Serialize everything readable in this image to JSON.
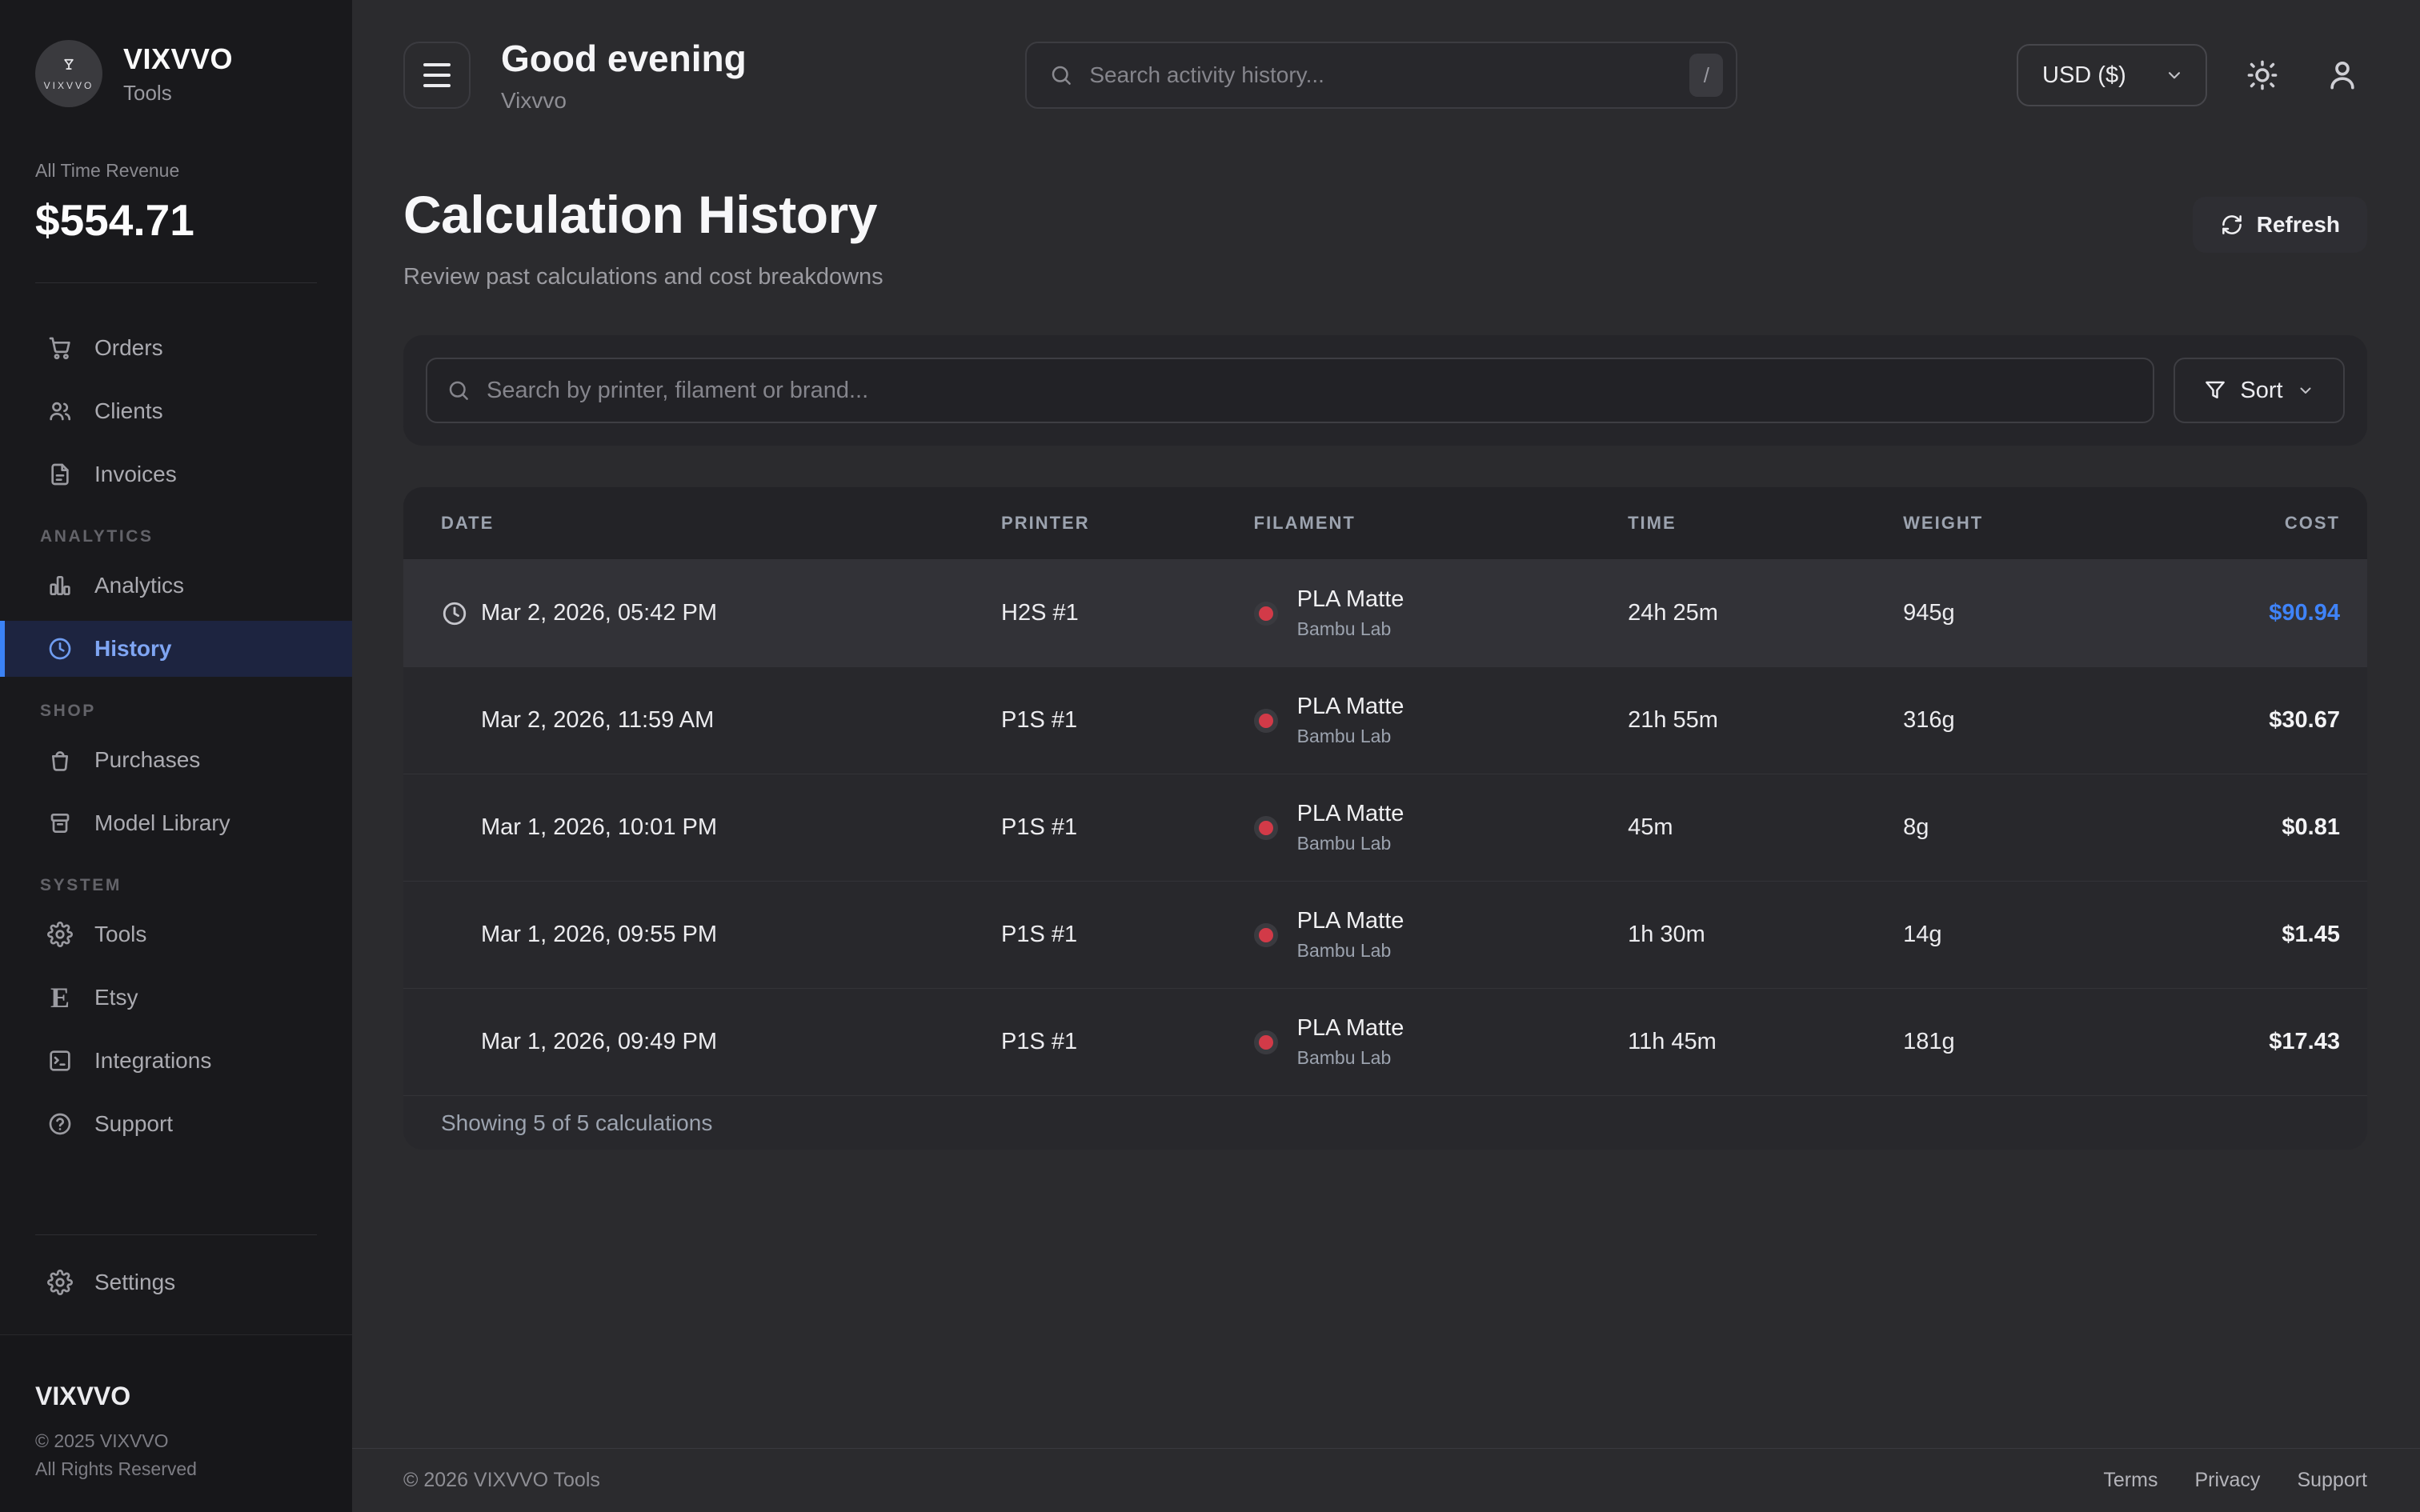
{
  "brand": {
    "name": "VIXVVO",
    "subtitle": "Tools",
    "logo_word": "VIXVVO"
  },
  "sidebar": {
    "revenue_label": "All Time Revenue",
    "revenue_value": "$554.71",
    "nav": [
      {
        "section": null,
        "items": [
          {
            "label": "Orders",
            "icon": "cart",
            "active": false
          },
          {
            "label": "Clients",
            "icon": "users",
            "active": false
          },
          {
            "label": "Invoices",
            "icon": "invoice",
            "active": false
          }
        ]
      },
      {
        "section": "ANALYTICS",
        "items": [
          {
            "label": "Analytics",
            "icon": "analytics",
            "active": false
          },
          {
            "label": "History",
            "icon": "history",
            "active": true
          }
        ]
      },
      {
        "section": "SHOP",
        "items": [
          {
            "label": "Purchases",
            "icon": "bag",
            "active": false
          },
          {
            "label": "Model Library",
            "icon": "library",
            "active": false
          }
        ]
      },
      {
        "section": "SYSTEM",
        "items": [
          {
            "label": "Tools",
            "icon": "gear",
            "active": false
          },
          {
            "label": "Etsy",
            "icon": "etsy",
            "active": false
          },
          {
            "label": "Integrations",
            "icon": "integrations",
            "active": false
          },
          {
            "label": "Support",
            "icon": "support",
            "active": false
          }
        ]
      }
    ],
    "settings_label": "Settings",
    "footer_brand": "VIXVVO",
    "footer_copyright": "© 2025 VIXVVO",
    "footer_rights": "All Rights Reserved"
  },
  "header": {
    "greeting": "Good evening",
    "greeting_sub": "Vixvvo",
    "search_placeholder": "Search activity history...",
    "search_shortcut": "/",
    "currency": "USD ($)"
  },
  "page": {
    "title": "Calculation History",
    "subtitle": "Review past calculations and cost breakdowns",
    "refresh_label": "Refresh",
    "search_placeholder": "Search by printer, filament or brand...",
    "sort_label": "Sort",
    "showing_text": "Showing 5 of 5 calculations"
  },
  "table": {
    "columns": [
      "DATE",
      "PRINTER",
      "FILAMENT",
      "TIME",
      "WEIGHT",
      "COST"
    ],
    "filament_dot_color": "#d23a48",
    "rows": [
      {
        "date": "Mar 2, 2026, 05:42 PM",
        "printer": "H2S #1",
        "filament": "PLA Matte",
        "brand": "Bambu Lab",
        "time": "24h 25m",
        "weight": "945g",
        "cost": "$90.94",
        "highlight": true,
        "clock_icon": true
      },
      {
        "date": "Mar 2, 2026, 11:59 AM",
        "printer": "P1S #1",
        "filament": "PLA Matte",
        "brand": "Bambu Lab",
        "time": "21h 55m",
        "weight": "316g",
        "cost": "$30.67",
        "highlight": false,
        "clock_icon": false
      },
      {
        "date": "Mar 1, 2026, 10:01 PM",
        "printer": "P1S #1",
        "filament": "PLA Matte",
        "brand": "Bambu Lab",
        "time": "45m",
        "weight": "8g",
        "cost": "$0.81",
        "highlight": false,
        "clock_icon": false
      },
      {
        "date": "Mar 1, 2026, 09:55 PM",
        "printer": "P1S #1",
        "filament": "PLA Matte",
        "brand": "Bambu Lab",
        "time": "1h 30m",
        "weight": "14g",
        "cost": "$1.45",
        "highlight": false,
        "clock_icon": false
      },
      {
        "date": "Mar 1, 2026, 09:49 PM",
        "printer": "P1S #1",
        "filament": "PLA Matte",
        "brand": "Bambu Lab",
        "time": "11h 45m",
        "weight": "181g",
        "cost": "$17.43",
        "highlight": false,
        "clock_icon": false
      }
    ]
  },
  "footer": {
    "copyright": "© 2026 VIXVVO Tools",
    "links": [
      "Terms",
      "Privacy",
      "Support"
    ]
  },
  "colors": {
    "accent": "#3b82f6",
    "cost_highlight": "#3f83f8",
    "filament_dot": "#d23a48"
  }
}
